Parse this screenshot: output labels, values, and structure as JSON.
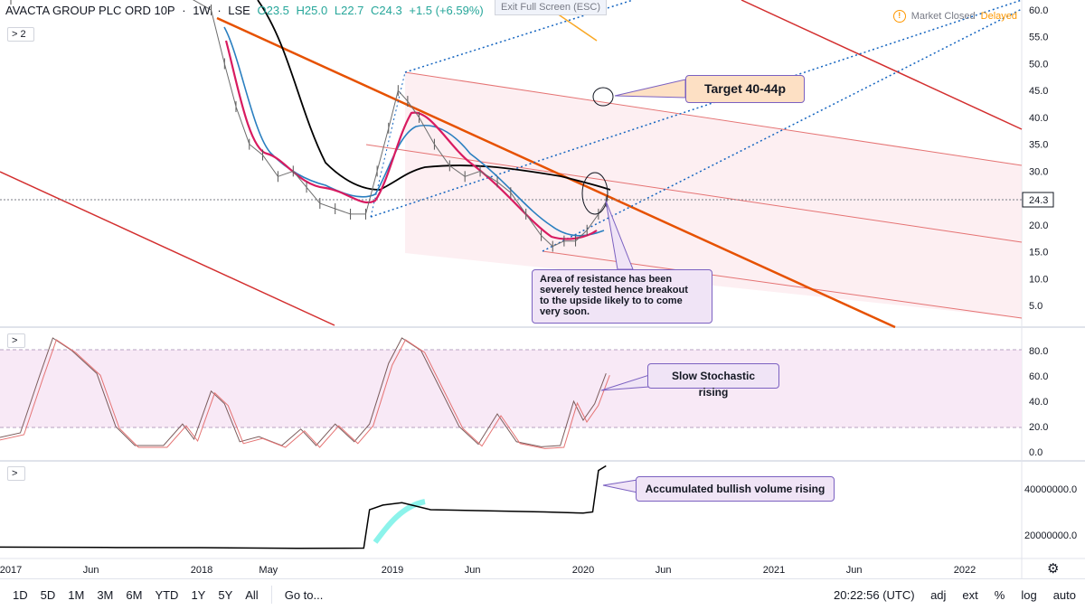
{
  "header": {
    "symbol": "AVACTA GROUP PLC ORD 10P",
    "interval": "1W",
    "exchange": "LSE",
    "open": "O23.5",
    "high": "H25.0",
    "low": "L22.7",
    "close": "C24.3",
    "change": "+1.5 (+6.59%)",
    "indicators_toggle": "2"
  },
  "exit_fullscreen": "Exit Full Screen (ESC)",
  "market_status": {
    "label": "Market Closed",
    "delayed": "Delayed",
    "warn_glyph": "!"
  },
  "price_axis": {
    "ticks": [
      "60.0",
      "55.0",
      "50.0",
      "45.0",
      "40.0",
      "35.0",
      "30.0",
      "25.0",
      "20.0",
      "15.0",
      "10.0",
      "5.0"
    ],
    "last_price": "24.3"
  },
  "stoch_axis": {
    "ticks": [
      "80.0",
      "60.0",
      "40.0",
      "20.0",
      "0.0"
    ]
  },
  "volume_axis": {
    "ticks": [
      "40000000.0",
      "20000000.0"
    ]
  },
  "time_axis": {
    "labels": [
      "2017",
      "Jun",
      "2018",
      "May",
      "2019",
      "Jun",
      "2020",
      "Jun",
      "2021",
      "Jun",
      "2022"
    ]
  },
  "annotations": {
    "target": "Target 40-44p",
    "resistance": [
      "Area of resistance has been",
      "severely tested hence breakout",
      "to the upside likely to to come",
      "very soon."
    ],
    "stochastic": "Slow Stochastic rising",
    "volume": "Accumulated bullish volume rising"
  },
  "bottom_bar": {
    "ranges": [
      "1D",
      "5D",
      "1M",
      "3M",
      "6M",
      "YTD",
      "1Y",
      "5Y",
      "All"
    ],
    "goto": "Go to...",
    "time": "20:22:56 (UTC)",
    "options": [
      "adj",
      "ext",
      "%",
      "log",
      "auto"
    ]
  },
  "pane_toggle_glyph": ">",
  "colors": {
    "price_line": "#000000",
    "ma_blue": "#2a7fc0",
    "ma_pink": "#d81b60",
    "trend_orange": "#e65100",
    "channel_red": "#d32f2f",
    "fib_blue": "#1565c0",
    "stoch_fill": "#f8e9f6",
    "volume_cyan": "#6ff0e6"
  },
  "chart_data": {
    "type": "line",
    "price_series": [
      {
        "t": 2017.0,
        "v": 62
      },
      {
        "t": 2017.2,
        "v": 63
      },
      {
        "t": 2017.45,
        "v": 64
      },
      {
        "t": 2017.9,
        "v": 63
      },
      {
        "t": 2018.05,
        "v": 60
      },
      {
        "t": 2018.12,
        "v": 50
      },
      {
        "t": 2018.18,
        "v": 42
      },
      {
        "t": 2018.25,
        "v": 35
      },
      {
        "t": 2018.32,
        "v": 33
      },
      {
        "t": 2018.4,
        "v": 29
      },
      {
        "t": 2018.48,
        "v": 30
      },
      {
        "t": 2018.55,
        "v": 27
      },
      {
        "t": 2018.62,
        "v": 24
      },
      {
        "t": 2018.7,
        "v": 23
      },
      {
        "t": 2018.78,
        "v": 22
      },
      {
        "t": 2018.86,
        "v": 22
      },
      {
        "t": 2018.92,
        "v": 30
      },
      {
        "t": 2018.98,
        "v": 38
      },
      {
        "t": 2019.03,
        "v": 45
      },
      {
        "t": 2019.08,
        "v": 43
      },
      {
        "t": 2019.14,
        "v": 40
      },
      {
        "t": 2019.22,
        "v": 35
      },
      {
        "t": 2019.3,
        "v": 31
      },
      {
        "t": 2019.38,
        "v": 29
      },
      {
        "t": 2019.46,
        "v": 30
      },
      {
        "t": 2019.55,
        "v": 28
      },
      {
        "t": 2019.62,
        "v": 26
      },
      {
        "t": 2019.7,
        "v": 22
      },
      {
        "t": 2019.78,
        "v": 18
      },
      {
        "t": 2019.84,
        "v": 16
      },
      {
        "t": 2019.9,
        "v": 17
      },
      {
        "t": 2019.96,
        "v": 17
      },
      {
        "t": 2020.02,
        "v": 19
      },
      {
        "t": 2020.08,
        "v": 22
      },
      {
        "t": 2020.12,
        "v": 24.3
      }
    ],
    "stochastic": [
      {
        "t": 2016.9,
        "v": 10
      },
      {
        "t": 2017.05,
        "v": 15
      },
      {
        "t": 2017.15,
        "v": 60
      },
      {
        "t": 2017.22,
        "v": 90
      },
      {
        "t": 2017.32,
        "v": 80
      },
      {
        "t": 2017.45,
        "v": 62
      },
      {
        "t": 2017.55,
        "v": 20
      },
      {
        "t": 2017.65,
        "v": 5
      },
      {
        "t": 2017.8,
        "v": 5
      },
      {
        "t": 2017.9,
        "v": 22
      },
      {
        "t": 2017.96,
        "v": 10
      },
      {
        "t": 2018.05,
        "v": 48
      },
      {
        "t": 2018.12,
        "v": 38
      },
      {
        "t": 2018.2,
        "v": 8
      },
      {
        "t": 2018.3,
        "v": 12
      },
      {
        "t": 2018.42,
        "v": 5
      },
      {
        "t": 2018.52,
        "v": 18
      },
      {
        "t": 2018.6,
        "v": 5
      },
      {
        "t": 2018.7,
        "v": 22
      },
      {
        "t": 2018.8,
        "v": 8
      },
      {
        "t": 2018.88,
        "v": 22
      },
      {
        "t": 2018.98,
        "v": 70
      },
      {
        "t": 2019.05,
        "v": 90
      },
      {
        "t": 2019.15,
        "v": 80
      },
      {
        "t": 2019.25,
        "v": 50
      },
      {
        "t": 2019.35,
        "v": 20
      },
      {
        "t": 2019.45,
        "v": 6
      },
      {
        "t": 2019.55,
        "v": 30
      },
      {
        "t": 2019.65,
        "v": 8
      },
      {
        "t": 2019.78,
        "v": 4
      },
      {
        "t": 2019.88,
        "v": 5
      },
      {
        "t": 2019.95,
        "v": 40
      },
      {
        "t": 2020.0,
        "v": 25
      },
      {
        "t": 2020.06,
        "v": 38
      },
      {
        "t": 2020.12,
        "v": 62
      }
    ],
    "volume": [
      {
        "t": 2016.9,
        "v": 14800000
      },
      {
        "t": 2017.5,
        "v": 14600000
      },
      {
        "t": 2018.0,
        "v": 14500000
      },
      {
        "t": 2018.5,
        "v": 14200000
      },
      {
        "t": 2018.85,
        "v": 14300000
      },
      {
        "t": 2018.88,
        "v": 31000000
      },
      {
        "t": 2018.95,
        "v": 33000000
      },
      {
        "t": 2019.05,
        "v": 34000000
      },
      {
        "t": 2019.2,
        "v": 31000000
      },
      {
        "t": 2019.5,
        "v": 30500000
      },
      {
        "t": 2019.8,
        "v": 30000000
      },
      {
        "t": 2020.0,
        "v": 29500000
      },
      {
        "t": 2020.05,
        "v": 30000000
      },
      {
        "t": 2020.08,
        "v": 48000000
      },
      {
        "t": 2020.12,
        "v": 50000000
      }
    ],
    "price_ylim": [
      0,
      62
    ],
    "stoch_ylim": [
      -5,
      98
    ],
    "volume_ylim": [
      10000000,
      52000000
    ]
  }
}
